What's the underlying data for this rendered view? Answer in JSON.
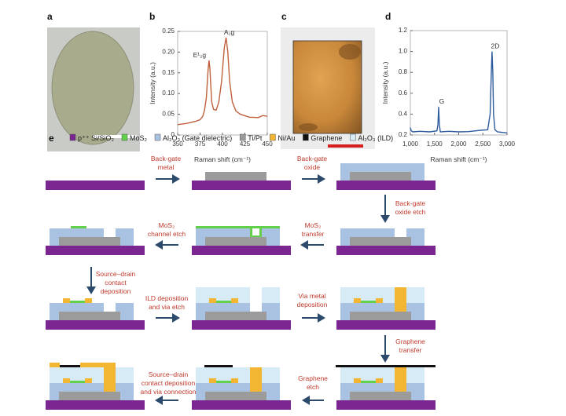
{
  "panel_labels": {
    "a": "a",
    "b": "b",
    "c": "c",
    "d": "d",
    "e": "e"
  },
  "chart_data": [
    {
      "panel": "b",
      "type": "line",
      "xlabel": "Raman shift (cm⁻¹)",
      "ylabel": "Intensity (a.u.)",
      "xlim": [
        350,
        450
      ],
      "ylim": [
        0,
        0.25
      ],
      "xticks": [
        "350",
        "375",
        "400",
        "425",
        "450"
      ],
      "yticks": [
        "0",
        "0.05",
        "0.10",
        "0.15",
        "0.20",
        "0.25"
      ],
      "color": "#c0603c",
      "annotations": [
        {
          "text": "E¹₂g",
          "x": 385,
          "y": 0.18
        },
        {
          "text": "A₁g",
          "x": 404,
          "y": 0.235
        }
      ],
      "points": [
        [
          350,
          0.025
        ],
        [
          360,
          0.028
        ],
        [
          370,
          0.033
        ],
        [
          375,
          0.037
        ],
        [
          378,
          0.045
        ],
        [
          380,
          0.06
        ],
        [
          382,
          0.09
        ],
        [
          384,
          0.16
        ],
        [
          385,
          0.18
        ],
        [
          386,
          0.16
        ],
        [
          388,
          0.08
        ],
        [
          390,
          0.062
        ],
        [
          393,
          0.06
        ],
        [
          396,
          0.08
        ],
        [
          399,
          0.13
        ],
        [
          402,
          0.21
        ],
        [
          404,
          0.235
        ],
        [
          406,
          0.2
        ],
        [
          408,
          0.13
        ],
        [
          411,
          0.08
        ],
        [
          415,
          0.058
        ],
        [
          420,
          0.05
        ],
        [
          430,
          0.043
        ],
        [
          440,
          0.042
        ],
        [
          445,
          0.047
        ],
        [
          450,
          0.045
        ]
      ]
    },
    {
      "panel": "d",
      "type": "line",
      "xlabel": "Raman shift (cm⁻¹)",
      "ylabel": "Intensity (a.u.)",
      "xlim": [
        1000,
        3000
      ],
      "ylim": [
        0.2,
        1.2
      ],
      "xticks": [
        "1,000",
        "1,500",
        "2,000",
        "2,500",
        "3,000"
      ],
      "yticks": [
        "0.2",
        "0.4",
        "0.6",
        "0.8",
        "1.0",
        "1.2"
      ],
      "color": "#2f5c9e",
      "annotations": [
        {
          "text": "G",
          "x": 1585,
          "y": 0.47
        },
        {
          "text": "2D",
          "x": 2690,
          "y": 1.0
        }
      ],
      "points": [
        [
          1000,
          0.27
        ],
        [
          1020,
          0.24
        ],
        [
          1050,
          0.23
        ],
        [
          1200,
          0.235
        ],
        [
          1400,
          0.23
        ],
        [
          1550,
          0.24
        ],
        [
          1570,
          0.3
        ],
        [
          1585,
          0.47
        ],
        [
          1600,
          0.3
        ],
        [
          1620,
          0.23
        ],
        [
          1800,
          0.235
        ],
        [
          2000,
          0.23
        ],
        [
          2200,
          0.232
        ],
        [
          2450,
          0.245
        ],
        [
          2600,
          0.25
        ],
        [
          2650,
          0.4
        ],
        [
          2675,
          0.8
        ],
        [
          2690,
          1.0
        ],
        [
          2705,
          0.8
        ],
        [
          2720,
          0.4
        ],
        [
          2750,
          0.25
        ],
        [
          2800,
          0.23
        ],
        [
          3000,
          0.22
        ]
      ]
    }
  ],
  "legend": [
    {
      "label": "p⁺⁺ Si/SiO₂",
      "color": "#7b2590"
    },
    {
      "label": "MoS₂",
      "color": "#62d04a"
    },
    {
      "label": "Al₂O₃ (Gate dielectric)",
      "color": "#a9c2e2"
    },
    {
      "label": "Ti/Pt",
      "color": "#9b9b9b"
    },
    {
      "label": "Ni/Au",
      "color": "#f2b632"
    },
    {
      "label": "Graphene",
      "color": "#111111"
    },
    {
      "label": "Al₂O₃ (ILD)",
      "color": "#d6ebf6"
    }
  ],
  "steps": [
    {
      "lines": [
        "Back-gate",
        "metal"
      ],
      "direction": "right"
    },
    {
      "lines": [
        "Back-gate",
        "oxide"
      ],
      "direction": "right"
    },
    {
      "lines": [
        "Back-gate",
        "oxide etch"
      ],
      "direction": "down"
    },
    {
      "lines": [
        "MoS₂",
        "transfer"
      ],
      "direction": "left"
    },
    {
      "lines": [
        "MoS₂",
        "channel etch"
      ],
      "direction": "left"
    },
    {
      "lines": [
        "Source–drain",
        "contact",
        "deposition"
      ],
      "direction": "down"
    },
    {
      "lines": [
        "ILD deposition",
        "and via etch"
      ],
      "direction": "right"
    },
    {
      "lines": [
        "Via metal",
        "deposition"
      ],
      "direction": "right"
    },
    {
      "lines": [
        "Graphene",
        "transfer"
      ],
      "direction": "down"
    },
    {
      "lines": [
        "Graphene",
        "etch"
      ],
      "direction": "left"
    },
    {
      "lines": [
        "Source–drain",
        "contact deposition",
        "and via connection"
      ],
      "direction": "left"
    }
  ],
  "colors": {
    "arrow": "#2c4a6b",
    "step_text": "#c0392b",
    "scale_bar_c": "#d62020"
  }
}
